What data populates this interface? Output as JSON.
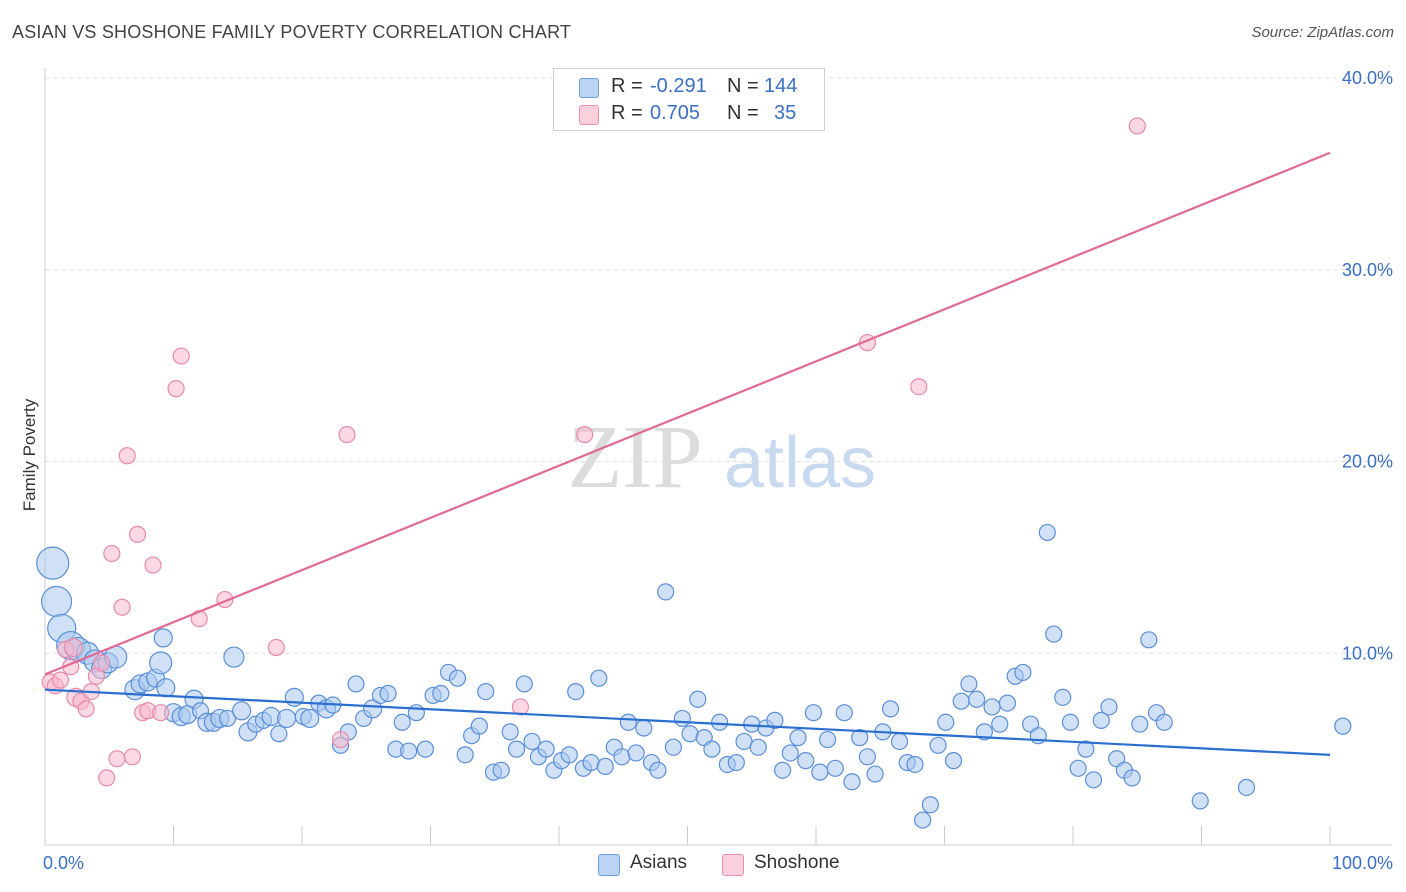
{
  "title": "ASIAN VS SHOSHONE FAMILY POVERTY CORRELATION CHART",
  "source": "Source: ZipAtlas.com",
  "watermark": {
    "zip": "ZIP",
    "atlas": "atlas"
  },
  "legend_top": {
    "rows": [
      {
        "r_label": "R =",
        "r_value": "-0.291",
        "n_label": "N =",
        "n_value": "144",
        "color": "#a9c8f0"
      },
      {
        "r_label": "R =",
        "r_value": "0.705",
        "n_label": "N =",
        "n_value": "35",
        "color": "#f7b8cc"
      }
    ]
  },
  "legend_bottom": [
    {
      "label": "Asians",
      "color": "#a9c8f0"
    },
    {
      "label": "Shoshone",
      "color": "#f7b8cc"
    }
  ],
  "chart_data": {
    "type": "scatter",
    "ylabel": "Family Poverty",
    "xlim": [
      0,
      100
    ],
    "ylim": [
      0,
      40
    ],
    "x_tick_labels": [
      "0.0%",
      "100.0%"
    ],
    "y_ticks": [
      10,
      20,
      30,
      40
    ],
    "y_tick_labels": [
      "10.0%",
      "20.0%",
      "30.0%",
      "40.0%"
    ],
    "grid": true,
    "series": [
      {
        "name": "Asians",
        "color": "#5b8fd9",
        "fill": "#a9c8f0",
        "trend": {
          "x": [
            0,
            100
          ],
          "y": [
            8.1,
            4.7
          ],
          "color": "#2a6fd0"
        },
        "points": [
          [
            0.6,
            14.7,
            16
          ],
          [
            0.9,
            12.7,
            15
          ],
          [
            1.3,
            11.3,
            14
          ],
          [
            2.0,
            10.4,
            14
          ],
          [
            2.6,
            10.2,
            12
          ],
          [
            3.3,
            10.0,
            11
          ],
          [
            3.9,
            9.6,
            11
          ],
          [
            4.4,
            9.2,
            10
          ],
          [
            4.9,
            9.5,
            10
          ],
          [
            5.5,
            9.8,
            11
          ],
          [
            7.0,
            8.1,
            10
          ],
          [
            7.4,
            8.4,
            9
          ],
          [
            8.0,
            8.5,
            9
          ],
          [
            8.6,
            8.7,
            9
          ],
          [
            9.2,
            10.8,
            9
          ],
          [
            9.0,
            9.5,
            11
          ],
          [
            9.4,
            8.2,
            9
          ],
          [
            10.0,
            6.9,
            9
          ],
          [
            10.6,
            6.7,
            9
          ],
          [
            11.1,
            6.8,
            9
          ],
          [
            11.6,
            7.6,
            9
          ],
          [
            12.1,
            7.0,
            8
          ],
          [
            12.6,
            6.4,
            9
          ],
          [
            13.1,
            6.4,
            9
          ],
          [
            13.6,
            6.6,
            9
          ],
          [
            14.2,
            6.6,
            8
          ],
          [
            14.7,
            9.8,
            10
          ],
          [
            15.3,
            7.0,
            9
          ],
          [
            15.8,
            5.9,
            9
          ],
          [
            16.4,
            6.3,
            8
          ],
          [
            17.0,
            6.5,
            8
          ],
          [
            17.6,
            6.7,
            9
          ],
          [
            18.2,
            5.8,
            8
          ],
          [
            18.8,
            6.6,
            9
          ],
          [
            19.4,
            7.7,
            9
          ],
          [
            20.1,
            6.7,
            8
          ],
          [
            20.6,
            6.6,
            9
          ],
          [
            21.3,
            7.4,
            8
          ],
          [
            21.9,
            7.1,
            9
          ],
          [
            22.4,
            7.3,
            8
          ],
          [
            23.0,
            5.2,
            8
          ],
          [
            23.6,
            5.9,
            8
          ],
          [
            24.2,
            8.4,
            8
          ],
          [
            24.8,
            6.6,
            8
          ],
          [
            25.5,
            7.1,
            9
          ],
          [
            26.1,
            7.8,
            8
          ],
          [
            26.7,
            7.9,
            8
          ],
          [
            27.3,
            5.0,
            8
          ],
          [
            27.8,
            6.4,
            8
          ],
          [
            28.3,
            4.9,
            8
          ],
          [
            28.9,
            6.9,
            8
          ],
          [
            29.6,
            5.0,
            8
          ],
          [
            30.2,
            7.8,
            8
          ],
          [
            30.8,
            7.9,
            8
          ],
          [
            31.4,
            9.0,
            8
          ],
          [
            32.1,
            8.7,
            8
          ],
          [
            32.7,
            4.7,
            8
          ],
          [
            33.2,
            5.7,
            8
          ],
          [
            33.8,
            6.2,
            8
          ],
          [
            34.3,
            8.0,
            8
          ],
          [
            34.9,
            3.8,
            8
          ],
          [
            35.5,
            3.9,
            8
          ],
          [
            36.2,
            5.9,
            8
          ],
          [
            36.7,
            5.0,
            8
          ],
          [
            37.3,
            8.4,
            8
          ],
          [
            37.9,
            5.4,
            8
          ],
          [
            38.4,
            4.6,
            8
          ],
          [
            39.0,
            5.0,
            8
          ],
          [
            39.6,
            3.9,
            8
          ],
          [
            40.2,
            4.4,
            8
          ],
          [
            40.8,
            4.7,
            8
          ],
          [
            41.3,
            8.0,
            8
          ],
          [
            41.9,
            4.0,
            8
          ],
          [
            42.5,
            4.3,
            8
          ],
          [
            43.1,
            8.7,
            8
          ],
          [
            43.6,
            4.1,
            8
          ],
          [
            44.3,
            5.1,
            8
          ],
          [
            44.9,
            4.6,
            8
          ],
          [
            45.4,
            6.4,
            8
          ],
          [
            46.0,
            4.8,
            8
          ],
          [
            46.6,
            6.1,
            8
          ],
          [
            47.2,
            4.3,
            8
          ],
          [
            47.7,
            3.9,
            8
          ],
          [
            48.3,
            13.2,
            8
          ],
          [
            48.9,
            5.1,
            8
          ],
          [
            49.6,
            6.6,
            8
          ],
          [
            50.2,
            5.8,
            8
          ],
          [
            50.8,
            7.6,
            8
          ],
          [
            51.3,
            5.6,
            8
          ],
          [
            51.9,
            5.0,
            8
          ],
          [
            52.5,
            6.4,
            8
          ],
          [
            53.1,
            4.2,
            8
          ],
          [
            53.8,
            4.3,
            8
          ],
          [
            54.4,
            5.4,
            8
          ],
          [
            55.0,
            6.3,
            8
          ],
          [
            55.5,
            5.1,
            8
          ],
          [
            56.1,
            6.1,
            8
          ],
          [
            56.8,
            6.5,
            8
          ],
          [
            57.4,
            3.9,
            8
          ],
          [
            58.0,
            4.8,
            8
          ],
          [
            58.6,
            5.6,
            8
          ],
          [
            59.2,
            4.4,
            8
          ],
          [
            59.8,
            6.9,
            8
          ],
          [
            60.3,
            3.8,
            8
          ],
          [
            60.9,
            5.5,
            8
          ],
          [
            61.5,
            4.0,
            8
          ],
          [
            62.2,
            6.9,
            8
          ],
          [
            62.8,
            3.3,
            8
          ],
          [
            63.4,
            5.6,
            8
          ],
          [
            64.0,
            4.6,
            8
          ],
          [
            64.6,
            3.7,
            8
          ],
          [
            65.2,
            5.9,
            8
          ],
          [
            65.8,
            7.1,
            8
          ],
          [
            66.5,
            5.4,
            8
          ],
          [
            67.1,
            4.3,
            8
          ],
          [
            67.7,
            4.2,
            8
          ],
          [
            68.3,
            1.3,
            8
          ],
          [
            68.9,
            2.1,
            8
          ],
          [
            69.5,
            5.2,
            8
          ],
          [
            70.1,
            6.4,
            8
          ],
          [
            70.7,
            4.4,
            8
          ],
          [
            71.3,
            7.5,
            8
          ],
          [
            71.9,
            8.4,
            8
          ],
          [
            72.5,
            7.6,
            8
          ],
          [
            73.1,
            5.9,
            8
          ],
          [
            73.7,
            7.2,
            8
          ],
          [
            74.3,
            6.3,
            8
          ],
          [
            74.9,
            7.4,
            8
          ],
          [
            75.5,
            8.8,
            8
          ],
          [
            76.1,
            9.0,
            8
          ],
          [
            76.7,
            6.3,
            8
          ],
          [
            77.3,
            5.7,
            8
          ],
          [
            78.0,
            16.3,
            8
          ],
          [
            78.5,
            11.0,
            8
          ],
          [
            79.2,
            7.7,
            8
          ],
          [
            79.8,
            6.4,
            8
          ],
          [
            80.4,
            4.0,
            8
          ],
          [
            81.0,
            5.0,
            8
          ],
          [
            81.6,
            3.4,
            8
          ],
          [
            82.2,
            6.5,
            8
          ],
          [
            82.8,
            7.2,
            8
          ],
          [
            83.4,
            4.5,
            8
          ],
          [
            84.0,
            3.9,
            8
          ],
          [
            84.6,
            3.5,
            8
          ],
          [
            85.2,
            6.3,
            8
          ],
          [
            85.9,
            10.7,
            8
          ],
          [
            86.5,
            6.9,
            8
          ],
          [
            87.1,
            6.4,
            8
          ],
          [
            89.9,
            2.3,
            8
          ],
          [
            93.5,
            3.0,
            8
          ],
          [
            101.0,
            6.2,
            8
          ]
        ]
      },
      {
        "name": "Shoshone",
        "color": "#e88aaa",
        "fill": "#f7b8cc",
        "trend": {
          "x": [
            0,
            100
          ],
          "y": [
            8.9,
            36.1
          ],
          "color": "#e06a92"
        },
        "points": [
          [
            0.4,
            8.5,
            8
          ],
          [
            0.8,
            8.3,
            8
          ],
          [
            1.2,
            8.6,
            8
          ],
          [
            1.6,
            10.2,
            8
          ],
          [
            2.0,
            9.3,
            8
          ],
          [
            2.4,
            7.7,
            9
          ],
          [
            2.8,
            7.5,
            8
          ],
          [
            3.2,
            7.1,
            8
          ],
          [
            3.6,
            8.0,
            8
          ],
          [
            4.0,
            8.8,
            8
          ],
          [
            4.4,
            9.5,
            8
          ],
          [
            4.8,
            3.5,
            8
          ],
          [
            5.2,
            15.2,
            8
          ],
          [
            5.6,
            4.5,
            8
          ],
          [
            6.0,
            12.4,
            8
          ],
          [
            6.4,
            20.3,
            8
          ],
          [
            6.8,
            4.6,
            8
          ],
          [
            7.2,
            16.2,
            8
          ],
          [
            7.6,
            6.9,
            8
          ],
          [
            8.0,
            7.0,
            8
          ],
          [
            8.4,
            14.6,
            8
          ],
          [
            9.0,
            6.9,
            8
          ],
          [
            10.2,
            23.8,
            8
          ],
          [
            10.6,
            25.5,
            8
          ],
          [
            12.0,
            11.8,
            8
          ],
          [
            14.0,
            12.8,
            8
          ],
          [
            18.0,
            10.3,
            8
          ],
          [
            23.0,
            5.5,
            8
          ],
          [
            23.5,
            21.4,
            8
          ],
          [
            37.0,
            7.2,
            8
          ],
          [
            42.0,
            21.4,
            8
          ],
          [
            64.0,
            26.2,
            8
          ],
          [
            68.0,
            23.9,
            8
          ],
          [
            85.0,
            37.5,
            8
          ],
          [
            2.2,
            10.3,
            9
          ]
        ]
      }
    ]
  }
}
